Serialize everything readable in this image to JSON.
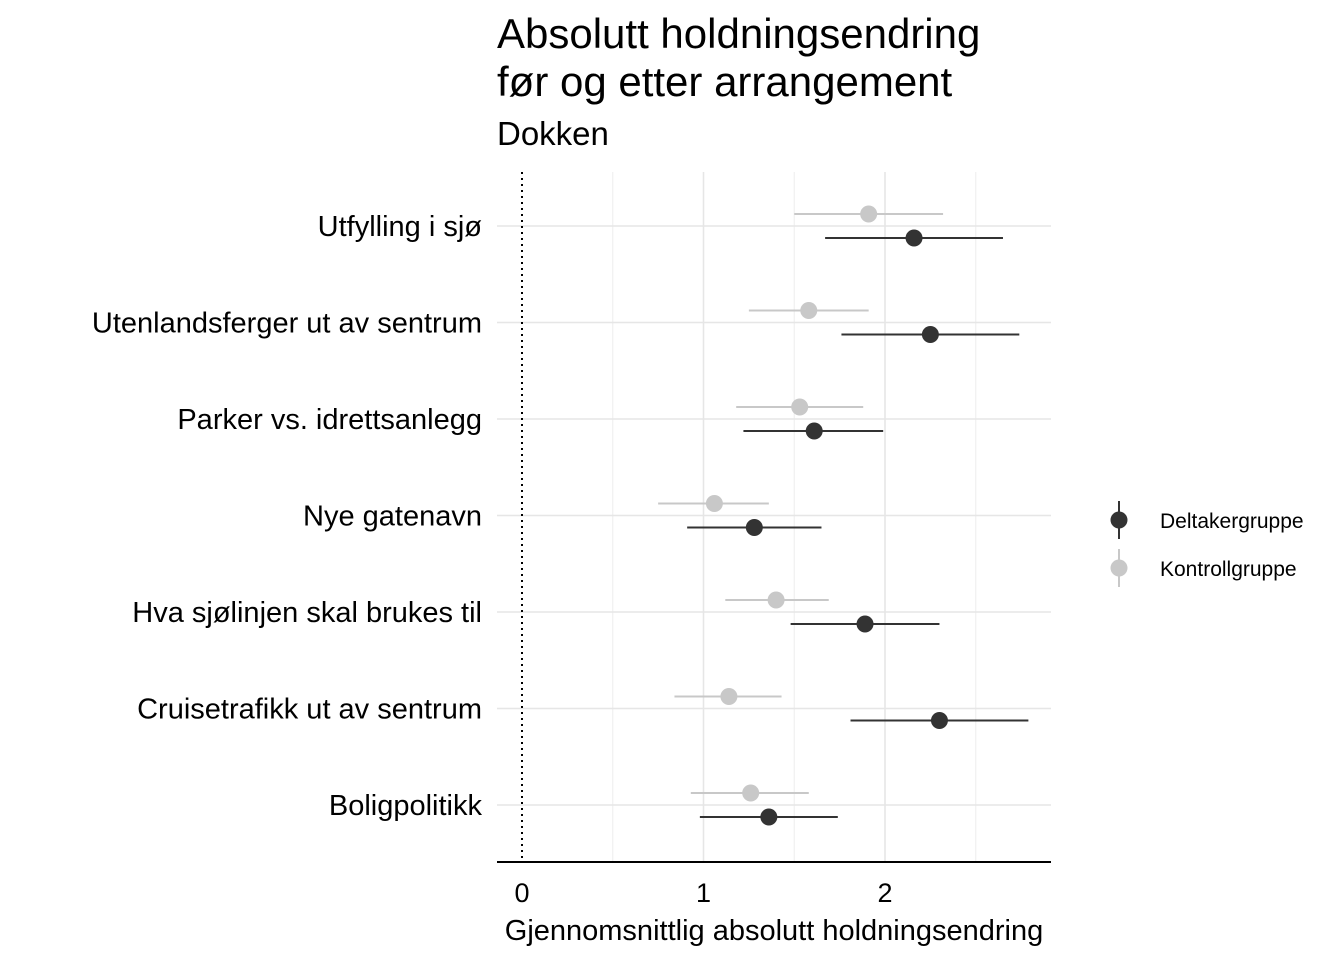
{
  "chart_data": {
    "type": "scatter",
    "title_line1": "Absolutt holdningsendring",
    "title_line2": "før og etter arrangement",
    "subtitle": "Dokken",
    "xlabel": "Gjennomsnittlig absolutt holdningsendring",
    "ylabel": "",
    "xlim": [
      -0.14,
      2.9
    ],
    "x_ticks": [
      "0",
      "1",
      "2"
    ],
    "reference_line_x": 0,
    "grid": true,
    "legend_position": "right",
    "categories": [
      "Utfylling i sjø",
      "Utenlandsferger ut av sentrum",
      "Parker vs. idrettsanlegg",
      "Nye gatenavn",
      "Hva sjølinjen skal brukes til",
      "Cruisetrafikk ut av sentrum",
      "Boligpolitikk"
    ],
    "series": [
      {
        "name": "Deltakergruppe",
        "color": "#333333",
        "values": [
          2.16,
          2.25,
          1.61,
          1.28,
          1.89,
          2.3,
          1.36
        ],
        "lower": [
          1.67,
          1.76,
          1.22,
          0.91,
          1.48,
          1.81,
          0.98
        ],
        "upper": [
          2.65,
          2.74,
          1.99,
          1.65,
          2.3,
          2.79,
          1.74
        ]
      },
      {
        "name": "Kontrollgruppe",
        "color": "#c8c8c8",
        "values": [
          1.91,
          1.58,
          1.53,
          1.06,
          1.4,
          1.14,
          1.26
        ],
        "lower": [
          1.5,
          1.25,
          1.18,
          0.75,
          1.12,
          0.84,
          0.93
        ],
        "upper": [
          2.32,
          1.91,
          1.88,
          1.36,
          1.69,
          1.43,
          1.58
        ]
      }
    ]
  }
}
